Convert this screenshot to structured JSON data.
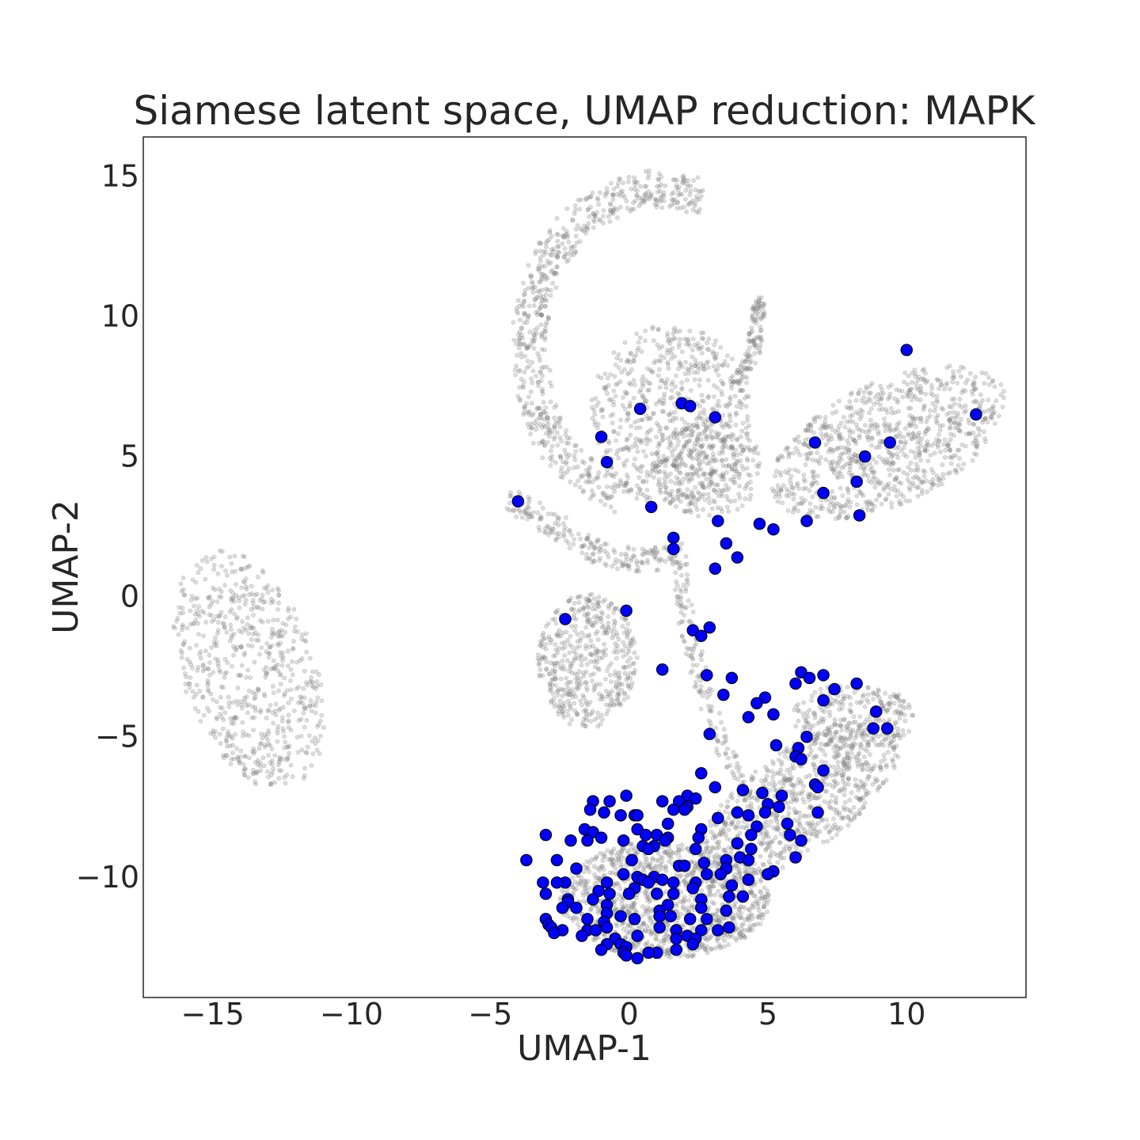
{
  "chart_data": {
    "type": "scatter",
    "title": "Siamese latent space, UMAP reduction: MAPK",
    "xlabel": "UMAP-1",
    "ylabel": "UMAP-2",
    "xlim": [
      -17.5,
      14.3
    ],
    "ylim": [
      -14.3,
      16.4
    ],
    "xticks": [
      -15,
      -10,
      -5,
      0,
      5,
      10
    ],
    "yticks": [
      15,
      10,
      5,
      0,
      -5,
      -10
    ],
    "grid": false,
    "colors": {
      "background_points": "#808080",
      "highlight_points": "#0000ff",
      "highlight_edge": "#000000",
      "axes_frame": "#262626",
      "text": "#262626"
    },
    "background_regions": [
      {
        "kind": "ellipse",
        "cx": -13.7,
        "cy": -2.6,
        "rx": 2.4,
        "ry": 4.5,
        "angle": 20,
        "weight": 650
      },
      {
        "kind": "arc",
        "points": [
          [
            2.6,
            14.3
          ],
          [
            0.5,
            14.6
          ],
          [
            -1.8,
            13.5
          ],
          [
            -3.1,
            11.8
          ],
          [
            -3.6,
            9.5
          ],
          [
            -3.4,
            7.3
          ],
          [
            -2.8,
            5.5
          ],
          [
            -1.6,
            4.3
          ],
          [
            -0.3,
            3.6
          ]
        ],
        "width": 1.3,
        "weight": 650
      },
      {
        "kind": "ellipse",
        "cx": 1.5,
        "cy": 6.5,
        "rx": 2.9,
        "ry": 3.3,
        "angle": 0,
        "weight": 650
      },
      {
        "kind": "ellipse",
        "cx": 2.8,
        "cy": 4.6,
        "rx": 2.0,
        "ry": 1.8,
        "angle": 0,
        "weight": 300
      },
      {
        "kind": "arc",
        "points": [
          [
            4.7,
            10.6
          ],
          [
            4.5,
            8.7
          ],
          [
            3.9,
            7.5
          ]
        ],
        "width": 0.5,
        "weight": 120
      },
      {
        "kind": "ellipse",
        "cx": 9.4,
        "cy": 5.5,
        "rx": 4.6,
        "ry": 2.2,
        "angle": 24,
        "weight": 900
      },
      {
        "kind": "arc",
        "points": [
          [
            -4.4,
            3.5
          ],
          [
            -2.6,
            2.5
          ],
          [
            -1.0,
            1.5
          ],
          [
            0.5,
            1.3
          ],
          [
            2.0,
            1.5
          ]
        ],
        "width": 0.9,
        "weight": 220
      },
      {
        "kind": "ellipse",
        "cx": -1.5,
        "cy": -2.3,
        "rx": 1.8,
        "ry": 2.4,
        "angle": 0,
        "weight": 480
      },
      {
        "kind": "arc",
        "points": [
          [
            1.8,
            1.0
          ],
          [
            2.1,
            -1.0
          ],
          [
            2.6,
            -3.0
          ],
          [
            3.2,
            -5.0
          ],
          [
            4.0,
            -6.5
          ]
        ],
        "width": 0.6,
        "weight": 140
      },
      {
        "kind": "ellipse",
        "cx": 1.3,
        "cy": -10.8,
        "rx": 3.8,
        "ry": 2.1,
        "angle": 0,
        "weight": 1200
      },
      {
        "kind": "ellipse",
        "cx": 6.1,
        "cy": -7.3,
        "rx": 4.4,
        "ry": 1.8,
        "angle": 36,
        "weight": 800
      },
      {
        "kind": "ellipse",
        "cx": 8.1,
        "cy": -4.3,
        "rx": 2.2,
        "ry": 1.2,
        "angle": 0,
        "weight": 260
      }
    ],
    "highlighted_points": [
      [
        10.0,
        8.8
      ],
      [
        12.5,
        6.5
      ],
      [
        0.4,
        6.7
      ],
      [
        1.9,
        6.9
      ],
      [
        2.2,
        6.8
      ],
      [
        3.1,
        6.4
      ],
      [
        -1.0,
        5.7
      ],
      [
        -0.8,
        4.8
      ],
      [
        6.7,
        5.5
      ],
      [
        9.4,
        5.5
      ],
      [
        8.5,
        5.0
      ],
      [
        8.2,
        4.1
      ],
      [
        7.0,
        3.7
      ],
      [
        8.3,
        2.9
      ],
      [
        6.4,
        2.7
      ],
      [
        -4.0,
        3.4
      ],
      [
        0.8,
        3.2
      ],
      [
        3.2,
        2.7
      ],
      [
        4.7,
        2.6
      ],
      [
        5.2,
        2.4
      ],
      [
        1.6,
        2.1
      ],
      [
        3.5,
        1.9
      ],
      [
        1.6,
        1.7
      ],
      [
        3.9,
        1.4
      ],
      [
        3.1,
        1.0
      ],
      [
        -2.3,
        -0.8
      ],
      [
        -0.1,
        -0.5
      ],
      [
        2.3,
        -1.2
      ],
      [
        2.6,
        -1.4
      ],
      [
        2.9,
        -1.1
      ],
      [
        1.2,
        -2.6
      ],
      [
        2.8,
        -2.8
      ],
      [
        3.7,
        -2.9
      ],
      [
        6.2,
        -2.7
      ],
      [
        6.5,
        -2.9
      ],
      [
        7.0,
        -2.8
      ],
      [
        6.0,
        -3.1
      ],
      [
        8.2,
        -3.1
      ],
      [
        7.4,
        -3.3
      ],
      [
        3.4,
        -3.5
      ],
      [
        4.9,
        -3.6
      ],
      [
        7.0,
        -3.7
      ],
      [
        4.6,
        -3.8
      ],
      [
        4.3,
        -4.3
      ],
      [
        5.2,
        -4.2
      ],
      [
        8.9,
        -4.1
      ],
      [
        9.3,
        -4.7
      ],
      [
        8.8,
        -4.7
      ],
      [
        2.9,
        -4.9
      ],
      [
        6.4,
        -5.0
      ],
      [
        5.3,
        -5.3
      ],
      [
        6.1,
        -5.4
      ],
      [
        6.0,
        -5.7
      ],
      [
        6.2,
        -5.8
      ],
      [
        7.0,
        -6.2
      ],
      [
        2.6,
        -6.3
      ],
      [
        6.7,
        -6.7
      ],
      [
        6.8,
        -6.8
      ],
      [
        3.1,
        -6.8
      ],
      [
        4.1,
        -6.9
      ],
      [
        4.8,
        -7.0
      ],
      [
        5.5,
        -7.1
      ],
      [
        -0.1,
        -7.1
      ],
      [
        2.1,
        -7.1
      ],
      [
        2.4,
        -7.2
      ],
      [
        -0.7,
        -7.3
      ],
      [
        -1.3,
        -7.3
      ],
      [
        1.2,
        -7.3
      ],
      [
        1.8,
        -7.3
      ],
      [
        2.1,
        -7.5
      ],
      [
        5.0,
        -7.4
      ],
      [
        5.4,
        -7.5
      ],
      [
        -1.4,
        -7.6
      ],
      [
        4.9,
        -7.7
      ],
      [
        1.6,
        -7.6
      ],
      [
        2.0,
        -7.6
      ],
      [
        3.9,
        -7.7
      ],
      [
        0.2,
        -7.8
      ],
      [
        -0.9,
        -7.7
      ],
      [
        0.3,
        -7.8
      ],
      [
        -0.3,
        -7.8
      ],
      [
        4.3,
        -7.8
      ],
      [
        3.2,
        -7.9
      ],
      [
        6.8,
        -7.7
      ],
      [
        1.4,
        -8.1
      ],
      [
        5.7,
        -8.1
      ],
      [
        0.3,
        -8.3
      ],
      [
        -1.6,
        -8.3
      ],
      [
        -1.3,
        -8.4
      ],
      [
        2.6,
        -8.3
      ],
      [
        4.6,
        -8.2
      ],
      [
        -3.0,
        -8.5
      ],
      [
        -1.0,
        -8.6
      ],
      [
        0.6,
        -8.5
      ],
      [
        1.0,
        -8.5
      ],
      [
        1.4,
        -8.6
      ],
      [
        4.4,
        -8.5
      ],
      [
        5.8,
        -8.5
      ],
      [
        -2.1,
        -8.7
      ],
      [
        -0.2,
        -8.7
      ],
      [
        1.3,
        -8.7
      ],
      [
        2.5,
        -8.6
      ],
      [
        3.9,
        -8.8
      ],
      [
        6.2,
        -8.7
      ],
      [
        -1.5,
        -8.7
      ],
      [
        0.9,
        -8.9
      ],
      [
        0.5,
        -8.9
      ],
      [
        0.7,
        -9.0
      ],
      [
        2.4,
        -9.0
      ],
      [
        4.4,
        -9.0
      ],
      [
        4.0,
        -9.3
      ],
      [
        -3.7,
        -9.4
      ],
      [
        -2.6,
        -9.4
      ],
      [
        0.1,
        -9.4
      ],
      [
        2.7,
        -9.5
      ],
      [
        3.5,
        -9.4
      ],
      [
        4.3,
        -9.4
      ],
      [
        6.0,
        -9.3
      ],
      [
        -1.9,
        -9.7
      ],
      [
        1.8,
        -9.6
      ],
      [
        2.0,
        -9.6
      ],
      [
        3.5,
        -9.7
      ],
      [
        5.2,
        -9.8
      ],
      [
        -0.2,
        -9.9
      ],
      [
        2.8,
        -9.9
      ],
      [
        5.0,
        -9.9
      ],
      [
        0.3,
        -10.0
      ],
      [
        0.9,
        -10.0
      ],
      [
        1.2,
        -10.1
      ],
      [
        3.3,
        -9.9
      ],
      [
        -2.3,
        -10.2
      ],
      [
        -0.8,
        -10.2
      ],
      [
        0.5,
        -10.1
      ],
      [
        0.7,
        -10.2
      ],
      [
        1.6,
        -10.2
      ],
      [
        2.4,
        -10.2
      ],
      [
        4.3,
        -10.1
      ],
      [
        -3.1,
        -10.2
      ],
      [
        -2.6,
        -10.2
      ],
      [
        3.7,
        -10.3
      ],
      [
        0.2,
        -10.4
      ],
      [
        -1.1,
        -10.5
      ],
      [
        -0.7,
        -10.6
      ],
      [
        1.0,
        -10.6
      ],
      [
        2.3,
        -10.4
      ],
      [
        4.1,
        -10.7
      ],
      [
        -3.0,
        -10.6
      ],
      [
        -2.2,
        -10.8
      ],
      [
        -1.3,
        -10.8
      ],
      [
        0.0,
        -10.6
      ],
      [
        1.6,
        -10.6
      ],
      [
        2.6,
        -10.8
      ],
      [
        3.6,
        -10.7
      ],
      [
        -2.2,
        -10.9
      ],
      [
        -0.8,
        -11.0
      ],
      [
        1.4,
        -11.0
      ],
      [
        -2.4,
        -11.1
      ],
      [
        -1.9,
        -11.1
      ],
      [
        1.1,
        -11.2
      ],
      [
        2.6,
        -11.1
      ],
      [
        3.5,
        -11.2
      ],
      [
        -0.8,
        -11.3
      ],
      [
        -0.3,
        -11.4
      ],
      [
        0.2,
        -11.5
      ],
      [
        1.1,
        -11.4
      ],
      [
        1.5,
        -11.4
      ],
      [
        2.2,
        -11.5
      ],
      [
        2.8,
        -11.5
      ],
      [
        -3.0,
        -11.5
      ],
      [
        -1.5,
        -11.5
      ],
      [
        -0.9,
        -11.6
      ],
      [
        -2.9,
        -11.7
      ],
      [
        -2.8,
        -11.8
      ],
      [
        -0.8,
        -11.8
      ],
      [
        1.1,
        -11.8
      ],
      [
        2.6,
        -11.9
      ],
      [
        3.6,
        -11.8
      ],
      [
        -2.4,
        -11.9
      ],
      [
        -1.5,
        -11.9
      ],
      [
        -1.2,
        -11.9
      ],
      [
        1.7,
        -11.9
      ],
      [
        3.2,
        -11.9
      ],
      [
        -2.7,
        -12.0
      ],
      [
        -1.7,
        -12.1
      ],
      [
        0.3,
        -12.1
      ],
      [
        2.1,
        -12.1
      ],
      [
        -0.5,
        -12.2
      ],
      [
        1.7,
        -12.2
      ],
      [
        2.4,
        -12.2
      ],
      [
        -0.3,
        -12.4
      ],
      [
        -0.8,
        -12.4
      ],
      [
        2.3,
        -12.4
      ],
      [
        -0.1,
        -12.5
      ],
      [
        -1.0,
        -12.6
      ],
      [
        -0.2,
        -12.7
      ],
      [
        1.0,
        -12.7
      ],
      [
        1.7,
        -12.6
      ],
      [
        0.7,
        -12.7
      ],
      [
        -0.1,
        -12.8
      ],
      [
        0.3,
        -12.9
      ]
    ]
  }
}
